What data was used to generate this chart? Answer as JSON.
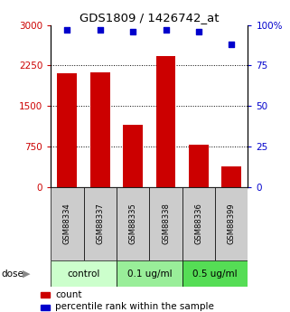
{
  "title": "GDS1809 / 1426742_at",
  "samples": [
    "GSM88334",
    "GSM88337",
    "GSM88335",
    "GSM88338",
    "GSM88336",
    "GSM88399"
  ],
  "bar_values": [
    2100,
    2120,
    1150,
    2430,
    790,
    390
  ],
  "dot_values": [
    97,
    97,
    96,
    97,
    96,
    88
  ],
  "bar_color": "#cc0000",
  "dot_color": "#0000cc",
  "ylim_left": [
    0,
    3000
  ],
  "ylim_right": [
    0,
    100
  ],
  "yticks_left": [
    0,
    750,
    1500,
    2250,
    3000
  ],
  "ytick_labels_left": [
    "0",
    "750",
    "1500",
    "2250",
    "3000"
  ],
  "yticks_right": [
    0,
    25,
    50,
    75,
    100
  ],
  "ytick_labels_right": [
    "0",
    "25",
    "50",
    "75",
    "100%"
  ],
  "groups": [
    {
      "label": "control",
      "indices": [
        0,
        1
      ],
      "color": "#ccffcc"
    },
    {
      "label": "0.1 ug/ml",
      "indices": [
        2,
        3
      ],
      "color": "#99ee99"
    },
    {
      "label": "0.5 ug/ml",
      "indices": [
        4,
        5
      ],
      "color": "#55dd55"
    }
  ],
  "dose_label": "dose",
  "legend_bar_label": "count",
  "legend_dot_label": "percentile rank within the sample",
  "label_color_left": "#cc0000",
  "label_color_right": "#0000cc",
  "sample_box_color": "#cccccc",
  "bar_width": 0.6
}
